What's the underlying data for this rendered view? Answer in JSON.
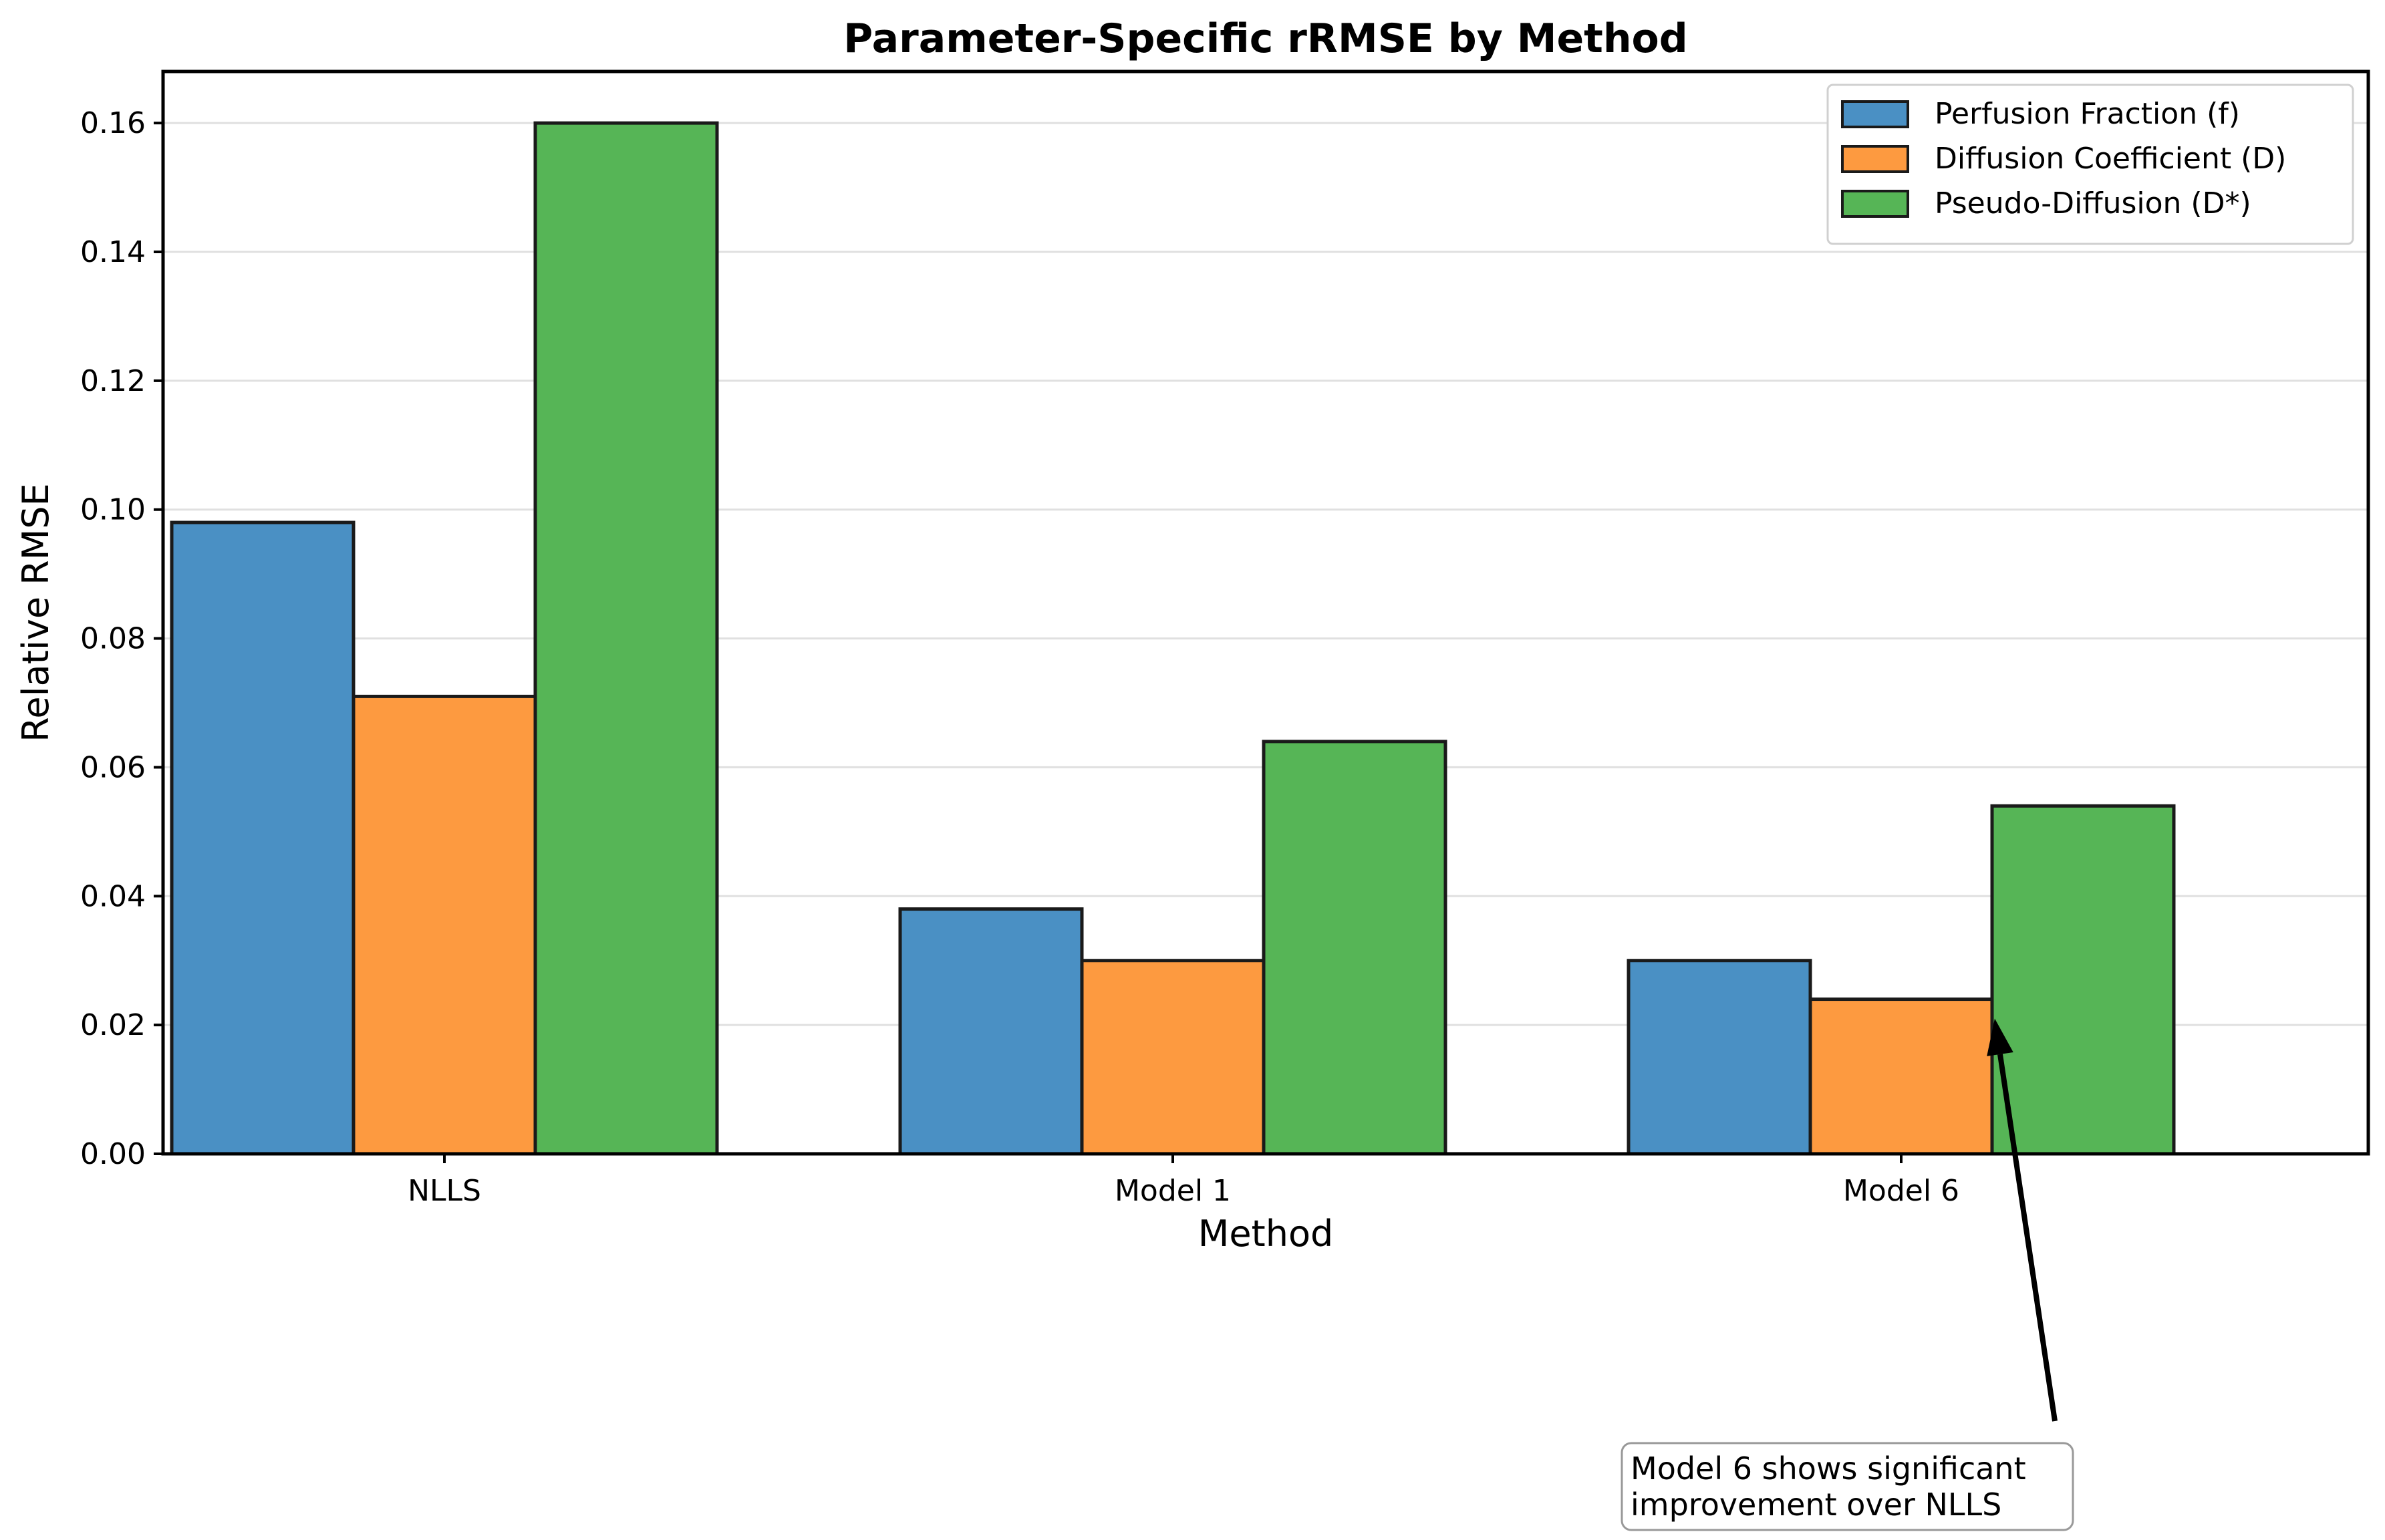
{
  "chart_data": {
    "type": "bar",
    "title": "Parameter-Specific rRMSE by Method",
    "xlabel": "Method",
    "ylabel": "Relative RMSE",
    "categories": [
      "NLLS",
      "Model 1",
      "Model 6"
    ],
    "ylim": [
      0,
      0.168
    ],
    "yticks": [
      "0.00",
      "0.02",
      "0.04",
      "0.06",
      "0.08",
      "0.10",
      "0.12",
      "0.14",
      "0.16"
    ],
    "ytick_values": [
      0,
      0.02,
      0.04,
      0.06,
      0.08,
      0.1,
      0.12,
      0.14,
      0.16
    ],
    "grid": true,
    "legend_position": "top-right",
    "series": [
      {
        "name": "Perfusion Fraction (f)",
        "color": "#4a90c4",
        "values": [
          0.098,
          0.038,
          0.03
        ]
      },
      {
        "name": "Diffusion Coefficient (D)",
        "color": "#fd9a40",
        "values": [
          0.071,
          0.03,
          0.024
        ]
      },
      {
        "name": "Pseudo-Diffusion (D*)",
        "color": "#56b556",
        "values": [
          0.16,
          0.064,
          0.054
        ]
      }
    ],
    "annotation": {
      "lines": [
        "Model 6 shows significant",
        "improvement over NLLS"
      ],
      "target_category": "Model 6",
      "target_value": 0.021
    }
  }
}
